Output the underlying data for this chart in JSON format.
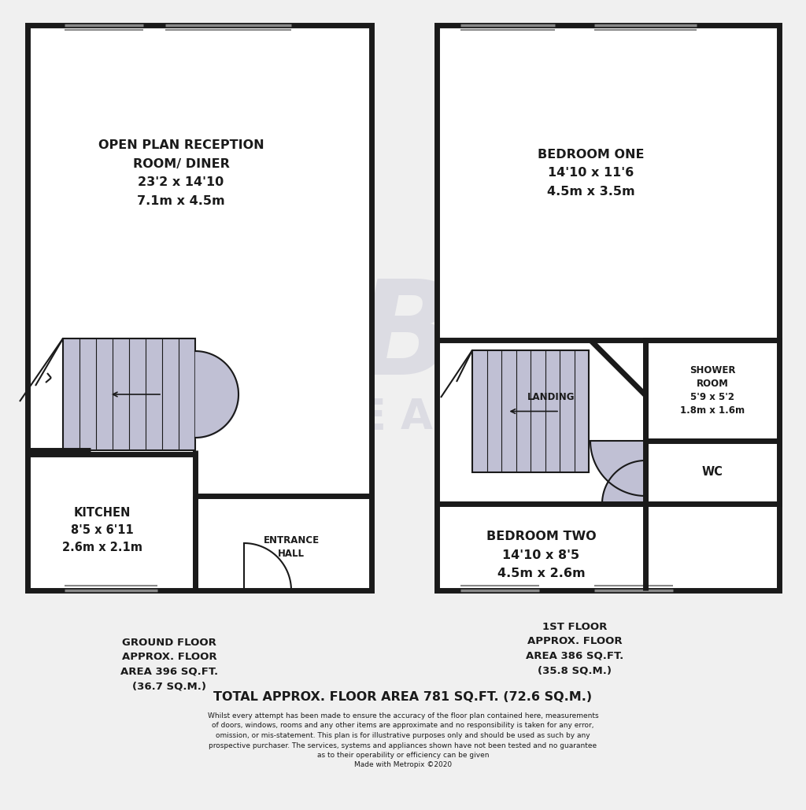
{
  "bg_color": "#f0f0f0",
  "wall_color": "#1a1a1a",
  "fill_color": "#c0c0d4",
  "ground_floor_label": "GROUND FLOOR\nAPPROX. FLOOR\nAREA 396 SQ.FT.\n(36.7 SQ.M.)",
  "first_floor_label": "1ST FLOOR\nAPPROX. FLOOR\nAREA 386 SQ.FT.\n(35.8 SQ.M.)",
  "total_label": "TOTAL APPROX. FLOOR AREA 781 SQ.FT. (72.6 SQ.M.)",
  "disclaimer": "Whilst every attempt has been made to ensure the accuracy of the floor plan contained here, measurements\nof doors, windows, rooms and any other items are approximate and no responsibility is taken for any error,\nomission, or mis-statement. This plan is for illustrative purposes only and should be used as such by any\nprospective purchaser. The services, systems and appliances shown have not been tested and no guarantee\nas to their operability or efficiency can be given\nMade with Metropix ©2020",
  "reception_label": "OPEN PLAN RECEPTION\nROOM/ DINER\n23'2 x 14'10\n7.1m x 4.5m",
  "kitchen_label": "KITCHEN\n8'5 x 6'11\n2.6m x 2.1m",
  "entrance_label": "ENTRANCE\nHALL",
  "bedroom1_label": "BEDROOM ONE\n14'10 x 11'6\n4.5m x 3.5m",
  "bedroom2_label": "BEDROOM TWO\n14'10 x 8'5\n4.5m x 2.6m",
  "shower_label": "SHOWER\nROOM\n5'9 x 5'2\n1.8m x 1.6m",
  "wc_label": "WC",
  "landing_label": "LANDING"
}
